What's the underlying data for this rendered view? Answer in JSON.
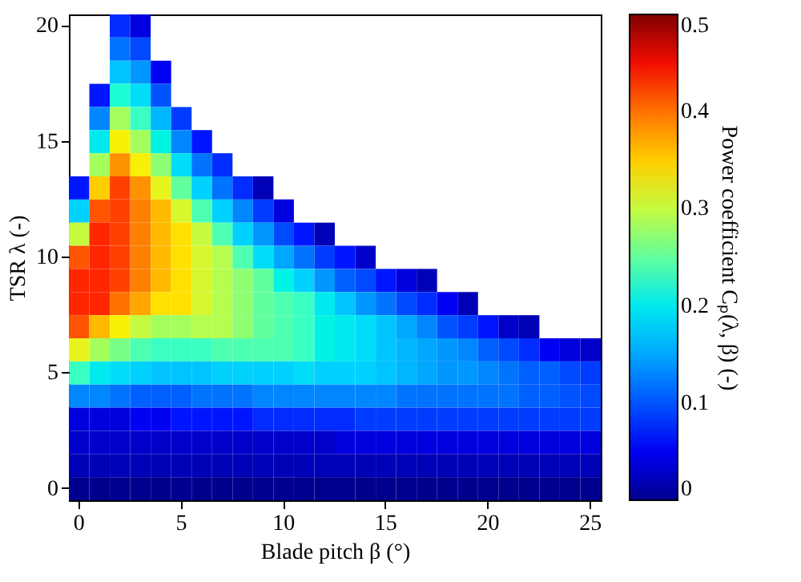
{
  "chart_data": {
    "type": "heatmap",
    "xlabel": "Blade pitch β (°)",
    "ylabel": "TSR λ (-)",
    "clabel": "Power coefficient  Cₚ(λ, β) (-)",
    "categories": [
      "0",
      null,
      null,
      null,
      null,
      "5",
      null,
      null,
      null,
      null,
      "10",
      null,
      null,
      null,
      null,
      "15",
      null,
      null,
      null,
      null,
      "20",
      null,
      null,
      null,
      null,
      "25"
    ],
    "y_categories": [
      "20",
      null,
      null,
      null,
      null,
      "15",
      null,
      null,
      null,
      null,
      "10",
      null,
      null,
      null,
      null,
      "5",
      null,
      null,
      null,
      null,
      "0"
    ],
    "cells": [
      [
        null,
        null,
        0.07,
        0.04,
        null,
        null,
        null,
        null,
        null,
        null,
        null,
        null,
        null,
        null,
        null,
        null,
        null,
        null,
        null,
        null,
        null,
        null,
        null,
        null,
        null,
        null
      ],
      [
        null,
        null,
        0.12,
        0.09,
        null,
        null,
        null,
        null,
        null,
        null,
        null,
        null,
        null,
        null,
        null,
        null,
        null,
        null,
        null,
        null,
        null,
        null,
        null,
        null,
        null,
        null
      ],
      [
        null,
        null,
        0.17,
        0.14,
        0.05,
        null,
        null,
        null,
        null,
        null,
        null,
        null,
        null,
        null,
        null,
        null,
        null,
        null,
        null,
        null,
        null,
        null,
        null,
        null,
        null,
        null
      ],
      [
        null,
        0.06,
        0.22,
        0.19,
        0.1,
        null,
        null,
        null,
        null,
        null,
        null,
        null,
        null,
        null,
        null,
        null,
        null,
        null,
        null,
        null,
        null,
        null,
        null,
        null,
        null,
        null
      ],
      [
        null,
        0.13,
        0.28,
        0.23,
        0.16,
        0.08,
        null,
        null,
        null,
        null,
        null,
        null,
        null,
        null,
        null,
        null,
        null,
        null,
        null,
        null,
        null,
        null,
        null,
        null,
        null,
        null
      ],
      [
        null,
        0.2,
        0.33,
        0.28,
        0.21,
        0.13,
        0.06,
        null,
        null,
        null,
        null,
        null,
        null,
        null,
        null,
        null,
        null,
        null,
        null,
        null,
        null,
        null,
        null,
        null,
        null,
        null
      ],
      [
        null,
        0.28,
        0.38,
        0.33,
        0.27,
        0.19,
        0.12,
        0.07,
        null,
        null,
        null,
        null,
        null,
        null,
        null,
        null,
        null,
        null,
        null,
        null,
        null,
        null,
        null,
        null,
        null,
        null
      ],
      [
        0.06,
        0.35,
        0.43,
        0.38,
        0.32,
        0.25,
        0.18,
        0.12,
        0.07,
        0.02,
        null,
        null,
        null,
        null,
        null,
        null,
        null,
        null,
        null,
        null,
        null,
        null,
        null,
        null,
        null,
        null
      ],
      [
        0.18,
        0.42,
        0.43,
        0.39,
        0.36,
        0.31,
        0.24,
        0.18,
        0.13,
        0.08,
        0.04,
        null,
        null,
        null,
        null,
        null,
        null,
        null,
        null,
        null,
        null,
        null,
        null,
        null,
        null,
        null
      ],
      [
        0.3,
        0.44,
        0.43,
        0.39,
        0.36,
        0.34,
        0.3,
        0.24,
        0.18,
        0.14,
        0.09,
        0.06,
        0.02,
        null,
        null,
        null,
        null,
        null,
        null,
        null,
        null,
        null,
        null,
        null,
        null,
        null
      ],
      [
        0.42,
        0.44,
        0.43,
        0.39,
        0.36,
        0.34,
        0.31,
        0.29,
        0.24,
        0.19,
        0.15,
        0.12,
        0.08,
        0.06,
        0.03,
        null,
        null,
        null,
        null,
        null,
        null,
        null,
        null,
        null,
        null,
        null
      ],
      [
        0.44,
        0.44,
        0.43,
        0.39,
        0.36,
        0.34,
        0.31,
        0.29,
        0.27,
        0.25,
        0.21,
        0.18,
        0.14,
        0.11,
        0.09,
        0.06,
        0.04,
        0.02,
        null,
        null,
        null,
        null,
        null,
        null,
        null,
        null
      ],
      [
        0.44,
        0.44,
        0.4,
        0.37,
        0.34,
        0.34,
        0.31,
        0.29,
        0.27,
        0.25,
        0.24,
        0.23,
        0.2,
        0.17,
        0.14,
        0.12,
        0.09,
        0.07,
        0.05,
        0.02,
        null,
        null,
        null,
        null,
        null,
        null
      ],
      [
        0.42,
        0.36,
        0.33,
        0.3,
        0.28,
        0.28,
        0.29,
        0.29,
        0.27,
        0.25,
        0.24,
        0.23,
        0.21,
        0.2,
        0.19,
        0.17,
        0.15,
        0.13,
        0.1,
        0.08,
        0.06,
        0.03,
        0.02,
        null,
        null,
        null
      ],
      [
        0.32,
        0.28,
        0.26,
        0.24,
        0.23,
        0.23,
        0.23,
        0.24,
        0.24,
        0.24,
        0.24,
        0.23,
        0.21,
        0.2,
        0.19,
        0.17,
        0.16,
        0.15,
        0.14,
        0.13,
        0.11,
        0.09,
        0.07,
        0.05,
        0.04,
        0.03
      ],
      [
        0.23,
        0.2,
        0.19,
        0.18,
        0.17,
        0.17,
        0.17,
        0.18,
        0.18,
        0.18,
        0.18,
        0.19,
        0.18,
        0.18,
        0.18,
        0.17,
        0.16,
        0.15,
        0.14,
        0.14,
        0.13,
        0.12,
        0.11,
        0.11,
        0.09,
        0.08
      ],
      [
        0.13,
        0.13,
        0.12,
        0.11,
        0.11,
        0.11,
        0.12,
        0.12,
        0.12,
        0.13,
        0.13,
        0.13,
        0.13,
        0.13,
        0.13,
        0.13,
        0.12,
        0.12,
        0.12,
        0.12,
        0.12,
        0.12,
        0.11,
        0.11,
        0.1,
        0.09
      ],
      [
        0.04,
        0.04,
        0.04,
        0.05,
        0.05,
        0.06,
        0.06,
        0.06,
        0.06,
        0.07,
        0.07,
        0.07,
        0.07,
        0.07,
        0.08,
        0.08,
        0.08,
        0.08,
        0.08,
        0.08,
        0.08,
        0.08,
        0.08,
        0.08,
        0.08,
        0.08
      ],
      [
        0.03,
        0.03,
        0.03,
        0.03,
        0.03,
        0.03,
        0.03,
        0.03,
        0.03,
        0.03,
        0.03,
        0.03,
        0.03,
        0.04,
        0.04,
        0.04,
        0.04,
        0.04,
        0.04,
        0.04,
        0.04,
        0.04,
        0.04,
        0.04,
        0.04,
        0.04
      ],
      [
        0.02,
        0.02,
        0.02,
        0.02,
        0.02,
        0.02,
        0.02,
        0.02,
        0.02,
        0.02,
        0.02,
        0.02,
        0.02,
        0.02,
        0.02,
        0.02,
        0.02,
        0.02,
        0.02,
        0.02,
        0.02,
        0.02,
        0.02,
        0.02,
        0.02,
        0.02
      ],
      [
        0,
        0,
        0,
        0,
        0,
        0,
        0,
        0,
        0,
        0,
        0,
        0,
        0,
        0,
        0,
        0,
        0,
        0,
        0,
        0,
        0,
        0,
        0,
        0,
        0,
        0
      ]
    ],
    "clim": [
      0,
      0.5
    ],
    "cticks": [
      0,
      0.1,
      0.2,
      0.3,
      0.4,
      0.5
    ]
  }
}
